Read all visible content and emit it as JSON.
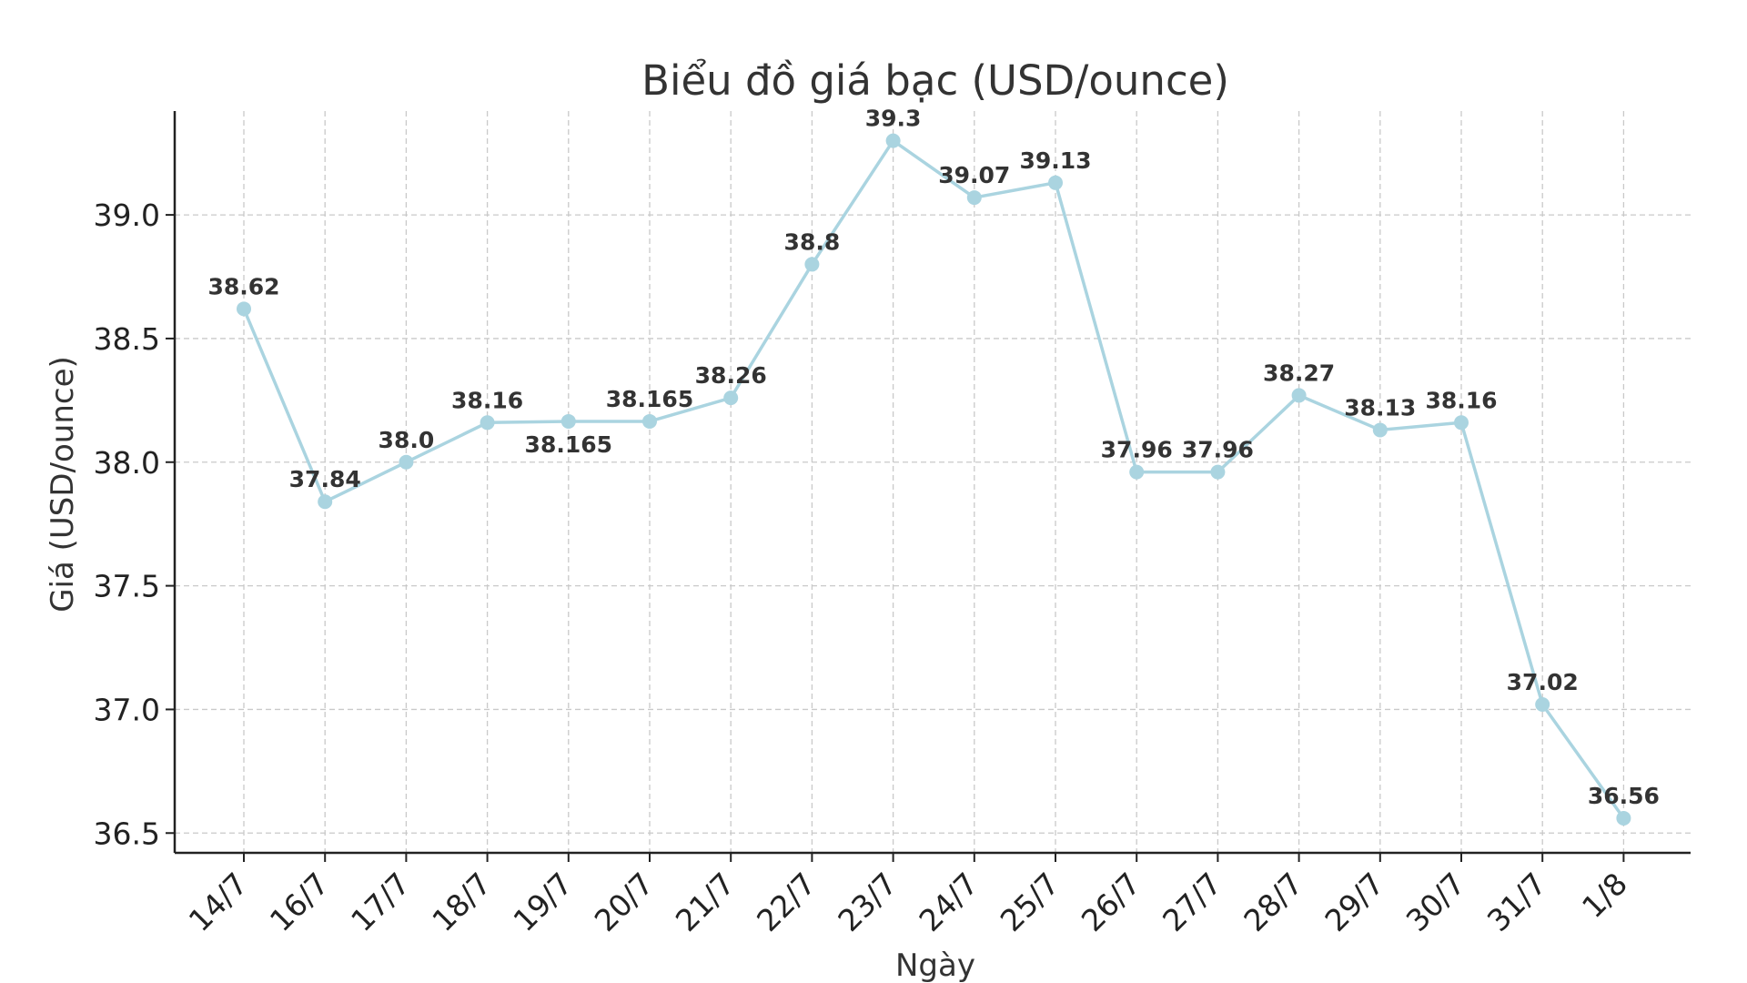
{
  "chart_data": {
    "type": "line",
    "title": "Biểu đồ giá bạc (USD/ounce)",
    "xlabel": "Ngày",
    "ylabel": "Giá (USD/ounce)",
    "categories": [
      "14/7",
      "16/7",
      "17/7",
      "18/7",
      "19/7",
      "20/7",
      "21/7",
      "22/7",
      "23/7",
      "24/7",
      "25/7",
      "26/7",
      "27/7",
      "28/7",
      "29/7",
      "30/7",
      "31/7",
      "1/8"
    ],
    "series": [
      {
        "values": [
          38.62,
          37.84,
          38.0,
          38.16,
          38.165,
          38.165,
          38.26,
          38.8,
          39.3,
          39.07,
          39.13,
          37.96,
          37.96,
          38.27,
          38.13,
          38.16,
          37.02,
          36.56
        ],
        "labels": [
          "38.62",
          "37.84",
          "38.0",
          "38.16",
          "38.165",
          "38.165",
          "38.26",
          "38.8",
          "39.3",
          "39.07",
          "39.13",
          "37.96",
          "37.96",
          "38.27",
          "38.13",
          "38.16",
          "37.02",
          "36.56"
        ]
      }
    ],
    "ylim": [
      36.42,
      39.42
    ],
    "yticks": [
      36.5,
      37.0,
      37.5,
      38.0,
      38.5,
      39.0
    ],
    "ytick_labels": [
      "36.5",
      "37.0",
      "37.5",
      "38.0",
      "38.5",
      "39.0"
    ],
    "grid": true,
    "colors": {
      "line": "#aad4e0",
      "axis": "#222222",
      "grid": "#c9c9c9",
      "text": "#333333"
    }
  }
}
